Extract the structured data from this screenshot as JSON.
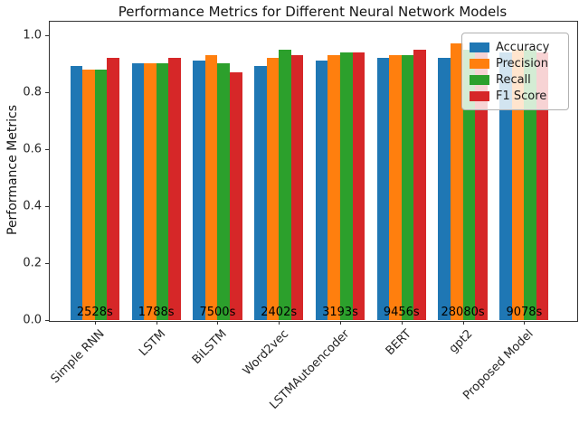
{
  "chart_data": {
    "type": "bar",
    "title": "Performance Metrics for Different Neural Network Models",
    "xlabel": "",
    "ylabel": "Performance Metrics",
    "categories": [
      "Simple RNN",
      "LSTM",
      "BiLSTM",
      "Word2vec",
      "LSTMAutoencoder",
      "BERT",
      "gpt2",
      "Proposed Model"
    ],
    "series": [
      {
        "name": "Accuracy",
        "color": "#1f77b4",
        "values": [
          0.89,
          0.9,
          0.91,
          0.89,
          0.91,
          0.92,
          0.92,
          0.94
        ]
      },
      {
        "name": "Precision",
        "color": "#ff7f0e",
        "values": [
          0.88,
          0.9,
          0.93,
          0.92,
          0.93,
          0.93,
          0.97,
          0.95
        ]
      },
      {
        "name": "Recall",
        "color": "#2ca02c",
        "values": [
          0.88,
          0.9,
          0.9,
          0.95,
          0.94,
          0.93,
          0.95,
          0.95
        ]
      },
      {
        "name": "F1 Score",
        "color": "#d62728",
        "values": [
          0.92,
          0.92,
          0.87,
          0.93,
          0.94,
          0.95,
          0.94,
          0.94
        ]
      }
    ],
    "bar_annotations": [
      "2528s",
      "1788s",
      "7500s",
      "2402s",
      "3193s",
      "9456s",
      "28080s",
      "9078s"
    ],
    "yticks": [
      0.0,
      0.2,
      0.4,
      0.6,
      0.8,
      1.0
    ],
    "ylim": [
      0,
      1.05
    ],
    "xlim": [
      -0.75,
      7.85
    ],
    "bar_group_width": 0.8,
    "xtick_rotation_deg": 45,
    "legend_position": "upper right",
    "grid": false,
    "background_color": "#ffffff",
    "spine_color": "#333333",
    "text_color": "#262626"
  }
}
